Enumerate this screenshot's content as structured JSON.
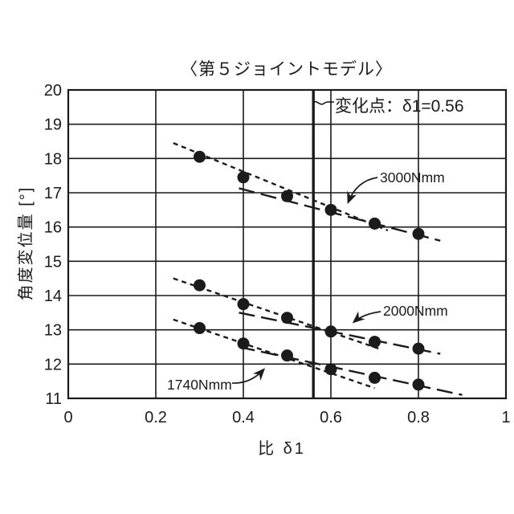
{
  "colors": {
    "ink": "#1b1b1b",
    "background": "#ffffff"
  },
  "chart_data": {
    "type": "scatter",
    "title": "〈第５ジョイントモデル〉",
    "xlabel": "比  δ1",
    "ylabel": "角度変位量 [°]",
    "xlim": [
      0,
      1
    ],
    "ylim": [
      11,
      20
    ],
    "grid": true,
    "xticks": {
      "values": [
        0,
        0.2,
        0.4,
        0.6,
        0.8,
        1
      ],
      "labels": [
        "0",
        "0.2",
        "0.4",
        "0.6",
        "0.8",
        "1"
      ]
    },
    "yticks": {
      "values": [
        20,
        19,
        18,
        17,
        16,
        15,
        14,
        13,
        12,
        11
      ],
      "labels": [
        "20",
        "19",
        "18",
        "17",
        "16",
        "15",
        "14",
        "13",
        "12",
        "11"
      ]
    },
    "change_point": {
      "x": 0.56,
      "label": "変化点：δ1=0.56"
    },
    "series": [
      {
        "name": "3000Nmm",
        "points": [
          [
            0.3,
            18.05
          ],
          [
            0.4,
            17.45
          ],
          [
            0.5,
            16.9
          ],
          [
            0.6,
            16.5
          ],
          [
            0.7,
            16.1
          ],
          [
            0.8,
            15.8
          ]
        ],
        "fit_before_change": {
          "style": "dotted",
          "from": [
            0.24,
            18.45
          ],
          "to": [
            0.73,
            15.9
          ]
        },
        "fit_after_change": {
          "style": "long-dash",
          "from": [
            0.39,
            17.13
          ],
          "to": [
            0.85,
            15.6
          ]
        }
      },
      {
        "name": "2000Nmm",
        "points": [
          [
            0.3,
            14.3
          ],
          [
            0.4,
            13.75
          ],
          [
            0.5,
            13.35
          ],
          [
            0.6,
            12.95
          ],
          [
            0.7,
            12.65
          ],
          [
            0.8,
            12.45
          ]
        ],
        "fit_before_change": {
          "style": "dotted",
          "from": [
            0.24,
            14.5
          ],
          "to": [
            0.71,
            12.45
          ]
        },
        "fit_after_change": {
          "style": "long-dash",
          "from": [
            0.39,
            13.5
          ],
          "to": [
            0.85,
            12.3
          ]
        }
      },
      {
        "name": "1740Nmm",
        "points": [
          [
            0.3,
            13.05
          ],
          [
            0.4,
            12.6
          ],
          [
            0.5,
            12.25
          ],
          [
            0.6,
            11.85
          ],
          [
            0.7,
            11.6
          ],
          [
            0.8,
            11.4
          ]
        ],
        "fit_before_change": {
          "style": "dotted",
          "from": [
            0.24,
            13.3
          ],
          "to": [
            0.7,
            11.3
          ]
        },
        "fit_after_change": {
          "style": "long-dash",
          "from": [
            0.39,
            12.5
          ],
          "to": [
            0.9,
            11.1
          ]
        }
      }
    ]
  }
}
